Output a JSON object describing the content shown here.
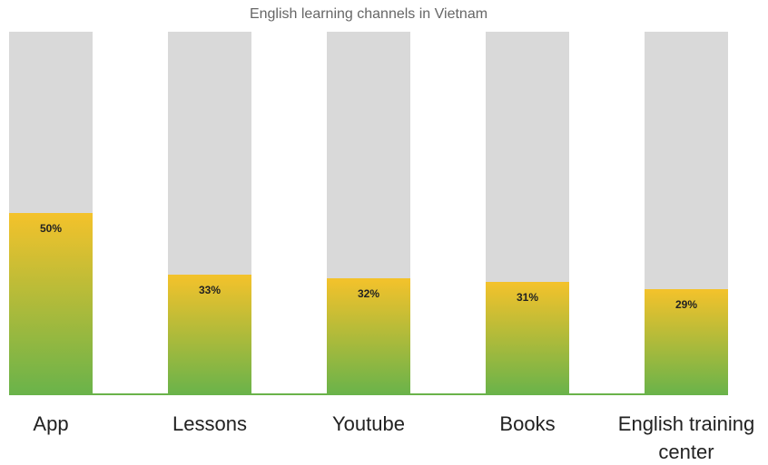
{
  "chart_data": {
    "type": "bar",
    "title": "English learning channels in Vietnam",
    "categories": [
      "App",
      "Lessons",
      "Youtube",
      "Books",
      "English training center"
    ],
    "values": [
      50,
      33,
      32,
      31,
      29
    ],
    "value_labels": [
      "50%",
      "33%",
      "32%",
      "31%",
      "29%"
    ],
    "ylim": [
      0,
      100
    ],
    "colors": {
      "top": "#f4c22b",
      "bottom": "#6ab34a",
      "track": "#d9d9d9",
      "baseline": "#6ab34a"
    }
  }
}
